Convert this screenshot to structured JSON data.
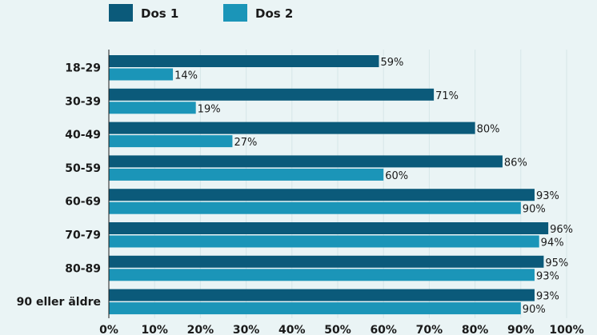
{
  "chart_data": {
    "type": "bar",
    "orientation": "horizontal",
    "categories": [
      "18-29",
      "30-39",
      "40-49",
      "50-59",
      "60-69",
      "70-79",
      "80-89",
      "90 eller äldre"
    ],
    "series": [
      {
        "name": "Dos 1",
        "color": "#0b5a7a",
        "values": [
          59,
          71,
          80,
          86,
          93,
          96,
          95,
          93
        ]
      },
      {
        "name": "Dos 2",
        "color": "#1b95b8",
        "values": [
          14,
          19,
          27,
          60,
          90,
          94,
          93,
          90
        ]
      }
    ],
    "value_labels": {
      "Dos 1": [
        "59%",
        "71%",
        "80%",
        "86%",
        "93%",
        "96%",
        "95%",
        "93%"
      ],
      "Dos 2": [
        "14%",
        "19%",
        "27%",
        "60%",
        "90%",
        "94%",
        "93%",
        "90%"
      ]
    },
    "x_ticks": [
      "0%",
      "10%",
      "20%",
      "30%",
      "40%",
      "50%",
      "60%",
      "70%",
      "80%",
      "90%",
      "100%"
    ],
    "xlim": [
      0,
      100
    ],
    "grid": true,
    "legend": "top-left"
  }
}
